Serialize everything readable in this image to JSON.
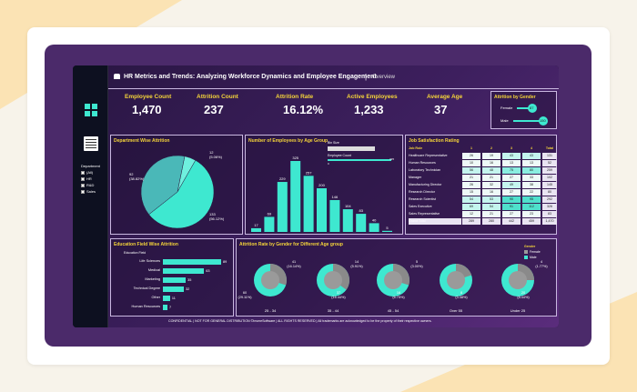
{
  "header": {
    "title": "HR Metrics and Trends: Analyzing Workforce Dynamics and Employee Engagement",
    "subtitle": "Overview"
  },
  "kpis": [
    {
      "label": "Employee Count",
      "value": "1,470"
    },
    {
      "label": "Attrition Count",
      "value": "237"
    },
    {
      "label": "Attrition Rate",
      "value": "16.12%"
    },
    {
      "label": "Active Employees",
      "value": "1,233"
    },
    {
      "label": "Average Age",
      "value": "37"
    }
  ],
  "gender_panel": {
    "title": "Attrition by Gender",
    "rows": [
      {
        "label": "Female",
        "value": "87"
      },
      {
        "label": "Male",
        "value": "150"
      }
    ]
  },
  "sidebar": {
    "filter_title": "Department",
    "filters": [
      "(All)",
      "HR",
      "R&D",
      "Sales"
    ]
  },
  "dept_panel": {
    "title": "Department Wise Attrition",
    "labels": [
      "12\n(5.06%)",
      "92\n(38.82%)",
      "133\n(56.12%)"
    ]
  },
  "age_panel": {
    "title": "Number of Employees by Age Group",
    "bin_label": "Bin Size",
    "emp_count_label": "Employee Count",
    "emp_min": "0",
    "emp_max": "325"
  },
  "chart_data": [
    {
      "type": "bar",
      "title": "Number of Employees by Age Group",
      "values": [
        17,
        69,
        229,
        325,
        257,
        200,
        146,
        104,
        83,
        40,
        5
      ]
    },
    {
      "type": "bar",
      "title": "Education Field Wise Attrition",
      "ylabel": "Education Field",
      "categories": [
        "Life Sciences",
        "Medical",
        "Marketing",
        "Technical Degree",
        "Other",
        "Human Resources"
      ],
      "values": [
        89,
        63,
        35,
        32,
        11,
        7
      ]
    },
    {
      "type": "pie",
      "title": "Department Wise Attrition",
      "categories": [
        "HR",
        "R&D",
        "Sales"
      ],
      "values": [
        12,
        133,
        92
      ]
    }
  ],
  "job_panel": {
    "title": "Job Satisfaction Rating",
    "headers": [
      "Job Role",
      "1",
      "2",
      "3",
      "4",
      "Total"
    ],
    "rows": [
      [
        "Healthcare Representative",
        "26",
        "19",
        "43",
        "43",
        "131"
      ],
      [
        "Human Resources",
        "10",
        "16",
        "13",
        "13",
        "52"
      ],
      [
        "Laboratory Technician",
        "56",
        "48",
        "75",
        "80",
        "259"
      ],
      [
        "Manager",
        "21",
        "21",
        "27",
        "33",
        "102"
      ],
      [
        "Manufacturing Director",
        "26",
        "32",
        "49",
        "38",
        "145"
      ],
      [
        "Research Director",
        "15",
        "16",
        "27",
        "22",
        "80"
      ],
      [
        "Research Scientist",
        "54",
        "53",
        "90",
        "95",
        "292"
      ],
      [
        "Sales Executive",
        "69",
        "54",
        "91",
        "112",
        "326"
      ],
      [
        "Sales Representative",
        "12",
        "21",
        "27",
        "23",
        "83"
      ],
      [
        "Grand Total",
        "289",
        "280",
        "442",
        "459",
        "1,470"
      ]
    ]
  },
  "edu_panel": {
    "title": "Education Field Wise Attrition",
    "axis": "Education Field"
  },
  "donut_panel": {
    "title": "Attrition Rate by Gender for Different Age group",
    "legend_title": "Gender",
    "legend": [
      "Female",
      "Male"
    ],
    "groups": [
      {
        "label": "25 - 34",
        "a": "41\n(16.14%)",
        "b": "60\n(29.11%)"
      },
      {
        "label": "35 - 44",
        "a": "14\n(5.91%)",
        "b": "37\n(16.44%)"
      },
      {
        "label": "45 - 54",
        "a": "5\n(3.00%)",
        "b": "16\n(6.75%)"
      },
      {
        "label": "Over 55",
        "a": "",
        "b": "8\n(3.38%)"
      },
      {
        "label": "Under 25",
        "a": "4\n(1.77%)",
        "b": "20\n(8.44%)"
      }
    ]
  },
  "footer": "CONFIDENTIAL | NOT FOR GENERAL DISTRIBUTION ©InsmeSoftware | ALL RIGHTS RESERVED | All trademarks are acknowledged to be the property of their respective owners.",
  "colors": {
    "accent": "#3ee8d0",
    "highlight": "#f5d43a",
    "bg": "#4b2a6a"
  }
}
